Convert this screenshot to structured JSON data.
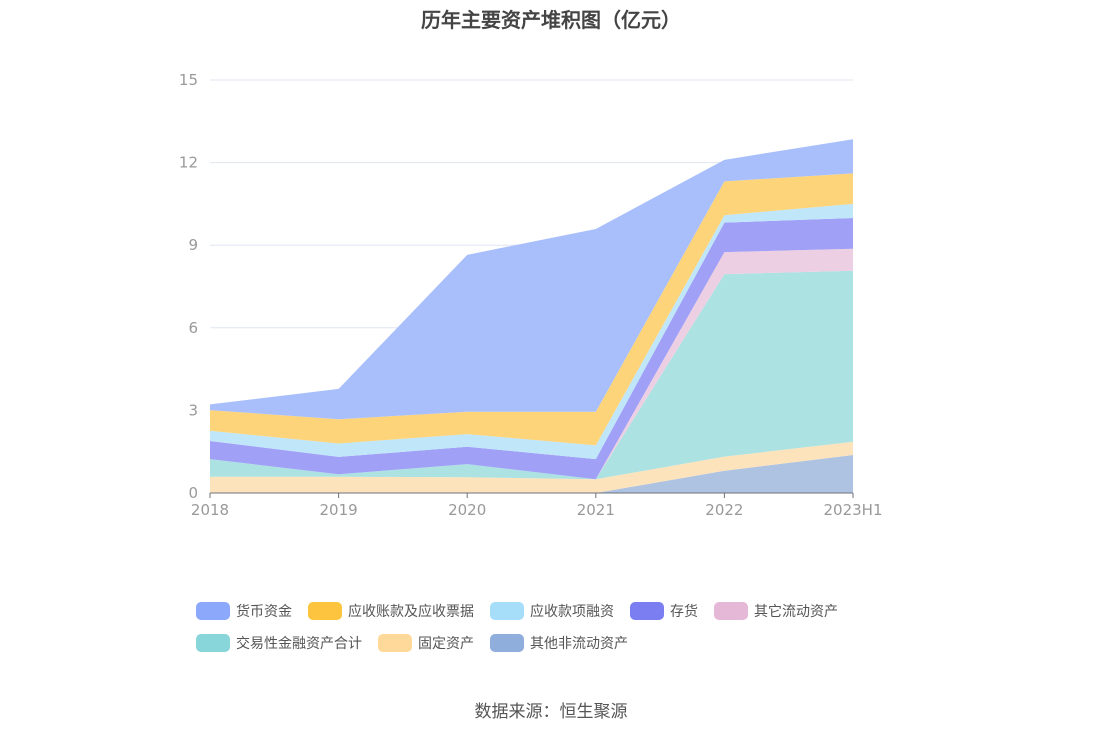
{
  "chart_data": {
    "type": "area",
    "stacked": true,
    "title": "历年主要资产堆积图（亿元）",
    "xlabel": "",
    "ylabel": "",
    "categories": [
      "2018",
      "2019",
      "2020",
      "2021",
      "2022",
      "2023H1"
    ],
    "ylim": [
      0,
      15
    ],
    "yticks": [
      0,
      3,
      6,
      9,
      12,
      15
    ],
    "grid": true,
    "legend_position": "bottom",
    "series": [
      {
        "name": "货币资金",
        "color": "#8ca8fb",
        "fill": "#a8bffc",
        "values": [
          0.21,
          1.1,
          5.7,
          6.64,
          0.78,
          1.24
        ]
      },
      {
        "name": "应收账款及应收票据",
        "color": "#fcc43f",
        "fill": "#fdd47a",
        "values": [
          0.75,
          0.88,
          0.81,
          1.22,
          1.23,
          1.11
        ]
      },
      {
        "name": "应收款项融资",
        "color": "#a6def9",
        "fill": "#c0e6f9",
        "values": [
          0.37,
          0.49,
          0.46,
          0.5,
          0.27,
          0.51
        ]
      },
      {
        "name": "存货",
        "color": "#7b7ef1",
        "fill": "#a0a0f7",
        "values": [
          0.66,
          0.63,
          0.63,
          0.73,
          1.07,
          1.12
        ]
      },
      {
        "name": "其它流动资产",
        "color": "#e6b8d8",
        "fill": "#edcfe3",
        "values": [
          0,
          0,
          0,
          0,
          0.8,
          0.8
        ]
      },
      {
        "name": "交易性金融资产合计",
        "color": "#88d6da",
        "fill": "#ace2e2",
        "values": [
          0.64,
          0.09,
          0.48,
          0,
          6.63,
          6.21
        ]
      },
      {
        "name": "固定资产",
        "color": "#fed99a",
        "fill": "#fde3bb",
        "values": [
          0.59,
          0.59,
          0.57,
          0.5,
          0.51,
          0.48
        ]
      },
      {
        "name": "其他非流动资产",
        "color": "#8faedc",
        "fill": "#aec3e2",
        "values": [
          0,
          0,
          0,
          0,
          0.81,
          1.38
        ]
      }
    ]
  },
  "source": "数据来源：恒生聚源"
}
